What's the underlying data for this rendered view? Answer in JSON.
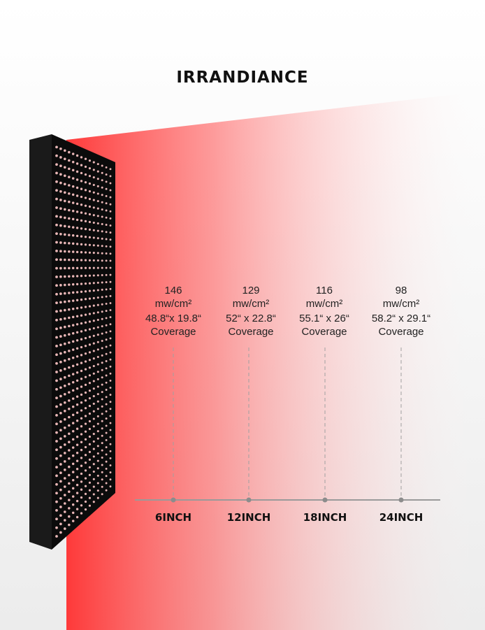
{
  "title": "IRRANDIANCE",
  "colors": {
    "beam": "#ff3c3c",
    "panel": "#0d0d0d",
    "led": "#e8b6b6",
    "axis": "#999999"
  },
  "readings": [
    {
      "value": "146",
      "unit": "mw/cm²",
      "size": "48.8“x 19.8“",
      "coverage": "Coverage",
      "distance": "6INCH"
    },
    {
      "value": "129",
      "unit": "mw/cm²",
      "size": "52“ x 22.8“",
      "coverage": "Coverage",
      "distance": "12INCH"
    },
    {
      "value": "116",
      "unit": "mw/cm²",
      "size": "55.1“ x 26“",
      "coverage": "Coverage",
      "distance": "18INCH"
    },
    {
      "value": "98",
      "unit": "mw/cm²",
      "size": "58.2“ x 29.1“",
      "coverage": "Coverage",
      "distance": "24INCH"
    }
  ]
}
